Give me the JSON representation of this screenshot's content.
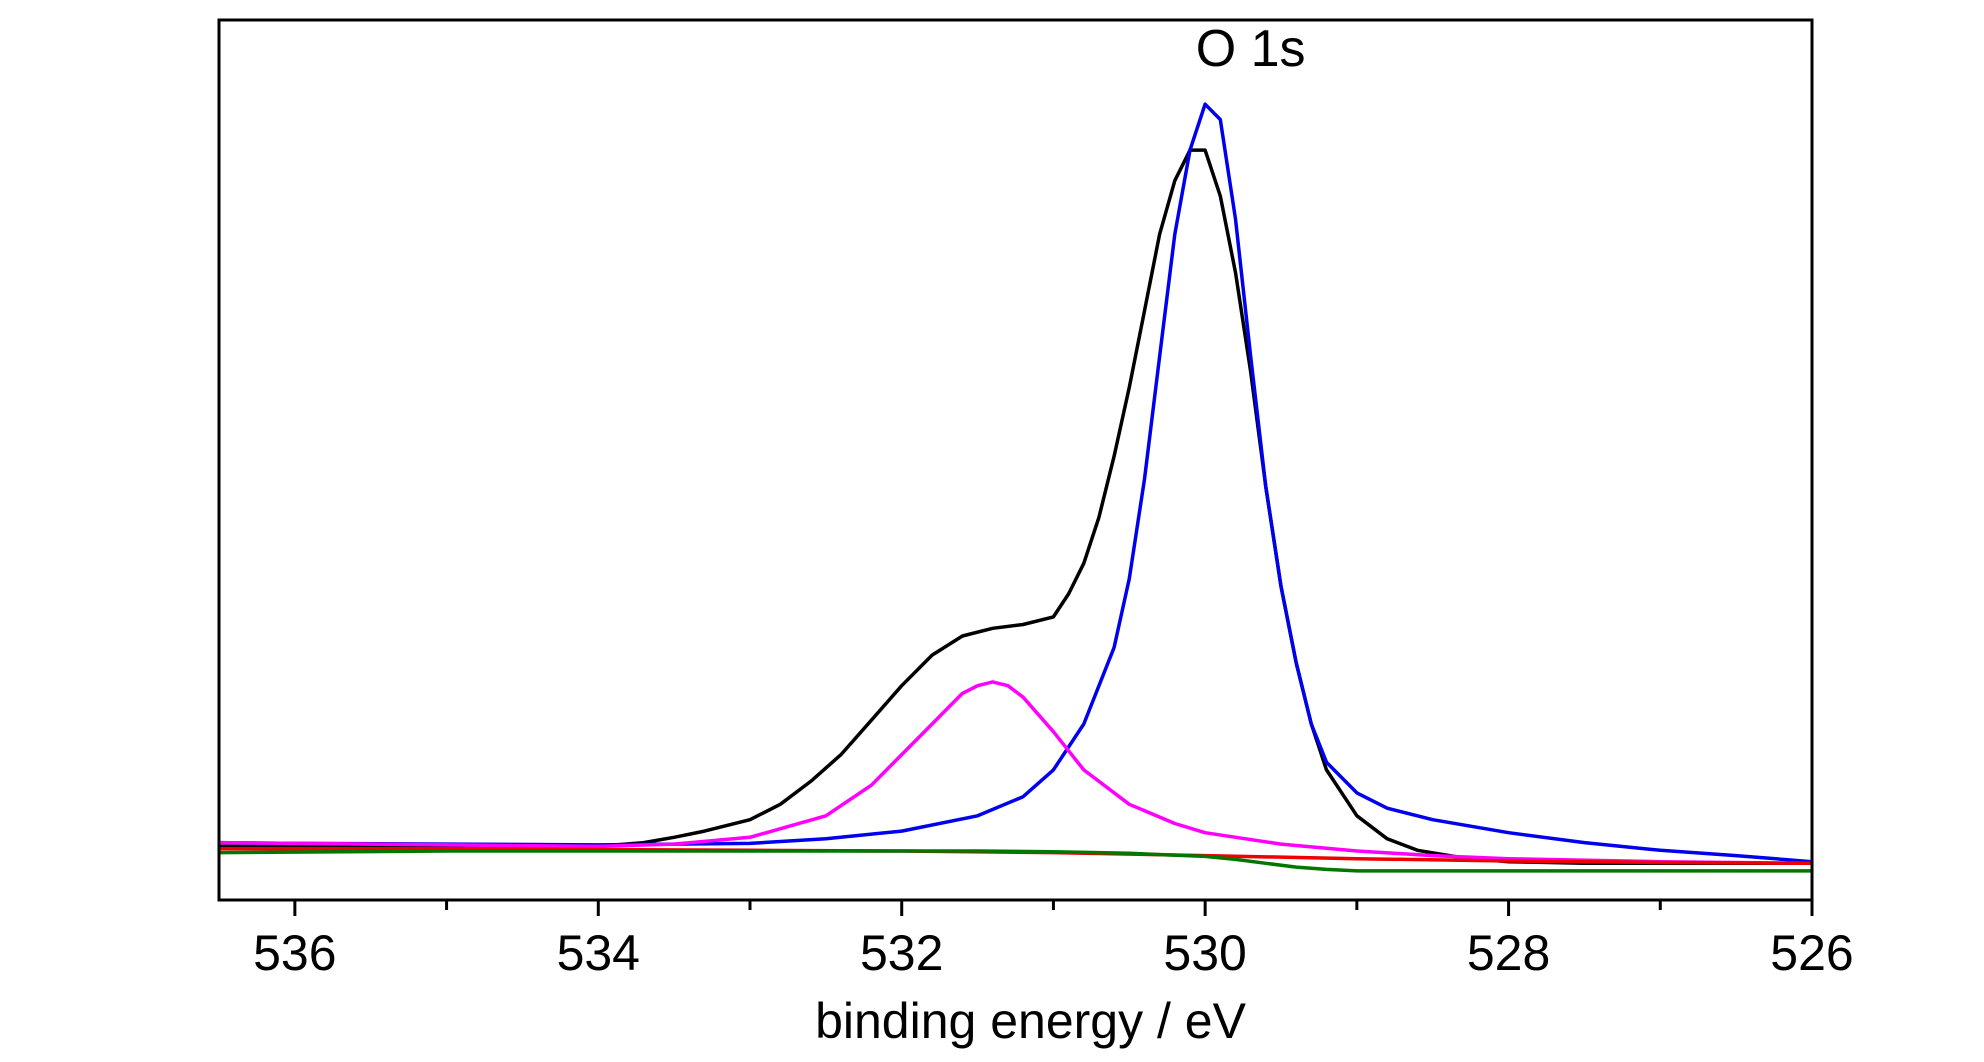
{
  "chart_data": {
    "type": "line",
    "title": "",
    "xlabel": "binding energy / eV",
    "ylabel": "",
    "xlim": [
      536.5,
      526
    ],
    "ylim": [
      -0.07,
      1.08
    ],
    "x_reversed": true,
    "grid": false,
    "legend": "none",
    "xticks": [
      536,
      534,
      532,
      530,
      528,
      526
    ],
    "xtick_labels": [
      "536",
      "534",
      "532",
      "530",
      "528",
      "526"
    ],
    "minor_xticks": [
      535,
      533,
      531,
      529,
      527
    ],
    "yticks_shown": false,
    "annotations": [
      {
        "text": "O 1s",
        "x": 529.7,
        "y": 1.02
      }
    ],
    "series": [
      {
        "color": "#000000",
        "x": [
          536.5,
          536.0,
          535.5,
          535.0,
          534.5,
          534.0,
          533.7,
          533.5,
          533.3,
          533.0,
          532.8,
          532.6,
          532.4,
          532.2,
          532.0,
          531.8,
          531.6,
          531.4,
          531.2,
          531.0,
          530.9,
          530.8,
          530.7,
          530.6,
          530.5,
          530.4,
          530.3,
          530.2,
          530.1,
          530.0,
          529.9,
          529.8,
          529.7,
          529.6,
          529.5,
          529.4,
          529.3,
          529.2,
          529.0,
          528.8,
          528.6,
          528.3,
          528.0,
          527.5,
          527.0,
          526.5,
          526.0
        ],
        "y": [
          0.0,
          0.0,
          0.0,
          0.0,
          0.0,
          0.0,
          0.005,
          0.012,
          0.02,
          0.035,
          0.055,
          0.085,
          0.12,
          0.165,
          0.21,
          0.25,
          0.275,
          0.285,
          0.29,
          0.3,
          0.33,
          0.37,
          0.43,
          0.51,
          0.6,
          0.7,
          0.8,
          0.87,
          0.91,
          0.91,
          0.85,
          0.75,
          0.62,
          0.47,
          0.34,
          0.24,
          0.16,
          0.1,
          0.04,
          0.01,
          -0.005,
          -0.015,
          -0.02,
          -0.022,
          -0.022,
          -0.022,
          -0.022
        ]
      },
      {
        "color": "#0000ee",
        "x": [
          536.5,
          536.0,
          535.0,
          534.0,
          533.0,
          532.5,
          532.0,
          531.5,
          531.2,
          531.0,
          530.8,
          530.6,
          530.5,
          530.4,
          530.3,
          530.2,
          530.1,
          530.0,
          529.9,
          529.8,
          529.7,
          529.6,
          529.5,
          529.4,
          529.3,
          529.2,
          529.0,
          528.8,
          528.5,
          528.0,
          527.5,
          527.0,
          526.5,
          526.0
        ],
        "y": [
          0.005,
          0.004,
          0.003,
          0.002,
          0.004,
          0.01,
          0.02,
          0.04,
          0.065,
          0.1,
          0.16,
          0.26,
          0.35,
          0.48,
          0.64,
          0.8,
          0.91,
          0.97,
          0.95,
          0.82,
          0.64,
          0.47,
          0.34,
          0.24,
          0.16,
          0.11,
          0.07,
          0.05,
          0.035,
          0.018,
          0.005,
          -0.005,
          -0.012,
          -0.02
        ]
      },
      {
        "color": "#ff00ff",
        "x": [
          536.5,
          535.0,
          534.0,
          533.5,
          533.0,
          532.5,
          532.2,
          532.0,
          531.8,
          531.6,
          531.5,
          531.4,
          531.3,
          531.2,
          531.0,
          530.8,
          530.5,
          530.2,
          530.0,
          529.5,
          529.0,
          528.5,
          528.0,
          527.0,
          526.0
        ],
        "y": [
          0.005,
          0.002,
          0.0,
          0.003,
          0.012,
          0.04,
          0.08,
          0.12,
          0.16,
          0.2,
          0.21,
          0.215,
          0.21,
          0.195,
          0.15,
          0.1,
          0.055,
          0.03,
          0.018,
          0.003,
          -0.006,
          -0.012,
          -0.016,
          -0.02,
          -0.022
        ]
      },
      {
        "color": "#ee0000",
        "x": [
          536.5,
          535.0,
          534.0,
          533.0,
          532.0,
          531.0,
          530.0,
          529.0,
          528.0,
          527.0,
          526.0
        ],
        "y": [
          -0.003,
          -0.003,
          -0.004,
          -0.005,
          -0.006,
          -0.008,
          -0.012,
          -0.016,
          -0.019,
          -0.021,
          -0.022
        ]
      },
      {
        "color": "#007700",
        "x": [
          536.5,
          535.0,
          534.0,
          533.0,
          532.0,
          531.5,
          531.0,
          530.5,
          530.0,
          529.8,
          529.6,
          529.4,
          529.2,
          529.0,
          528.5,
          528.0,
          527.0,
          526.0
        ],
        "y": [
          -0.008,
          -0.006,
          -0.006,
          -0.006,
          -0.006,
          -0.006,
          -0.007,
          -0.009,
          -0.013,
          -0.017,
          -0.022,
          -0.027,
          -0.03,
          -0.032,
          -0.032,
          -0.032,
          -0.032,
          -0.032
        ]
      }
    ]
  }
}
